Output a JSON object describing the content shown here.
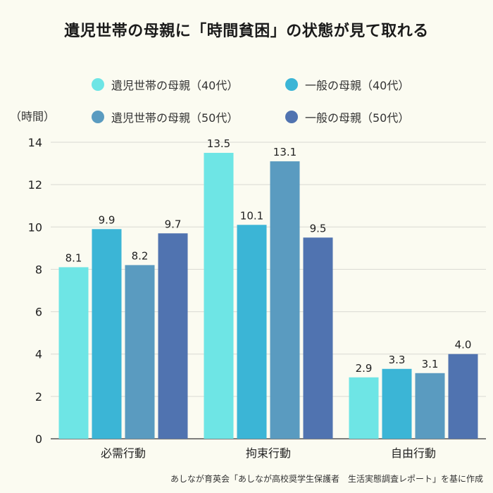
{
  "title": "遺児世帯の母親に「時間貧困」の状態が見て取れる",
  "unit_label": "（時間）",
  "source": "あしなが育英会「あしなが高校奨学生保護者　生活実態調査レポート」を基に作成",
  "chart_data": {
    "type": "bar",
    "title": "遺児世帯の母親に「時間貧困」の状態が見て取れる",
    "ylabel": "（時間）",
    "ylim": [
      0,
      14
    ],
    "yticks": [
      0,
      2,
      4,
      6,
      8,
      10,
      12,
      14
    ],
    "grid": true,
    "legend_position": "top",
    "categories": [
      "必需行動",
      "拘束行動",
      "自由行動"
    ],
    "series": [
      {
        "name": "遺児世帯の母親（40代）",
        "color": "#6ee5e5",
        "values": [
          8.1,
          13.5,
          2.9
        ]
      },
      {
        "name": "一般の母親（40代）",
        "color": "#3bb5d6",
        "values": [
          9.9,
          10.1,
          3.3
        ]
      },
      {
        "name": "遺児世帯の母親（50代）",
        "color": "#5a9bc0",
        "values": [
          8.2,
          13.1,
          3.1
        ]
      },
      {
        "name": "一般の母親（50代）",
        "color": "#5073b0",
        "values": [
          9.7,
          9.5,
          4.0
        ]
      }
    ]
  }
}
